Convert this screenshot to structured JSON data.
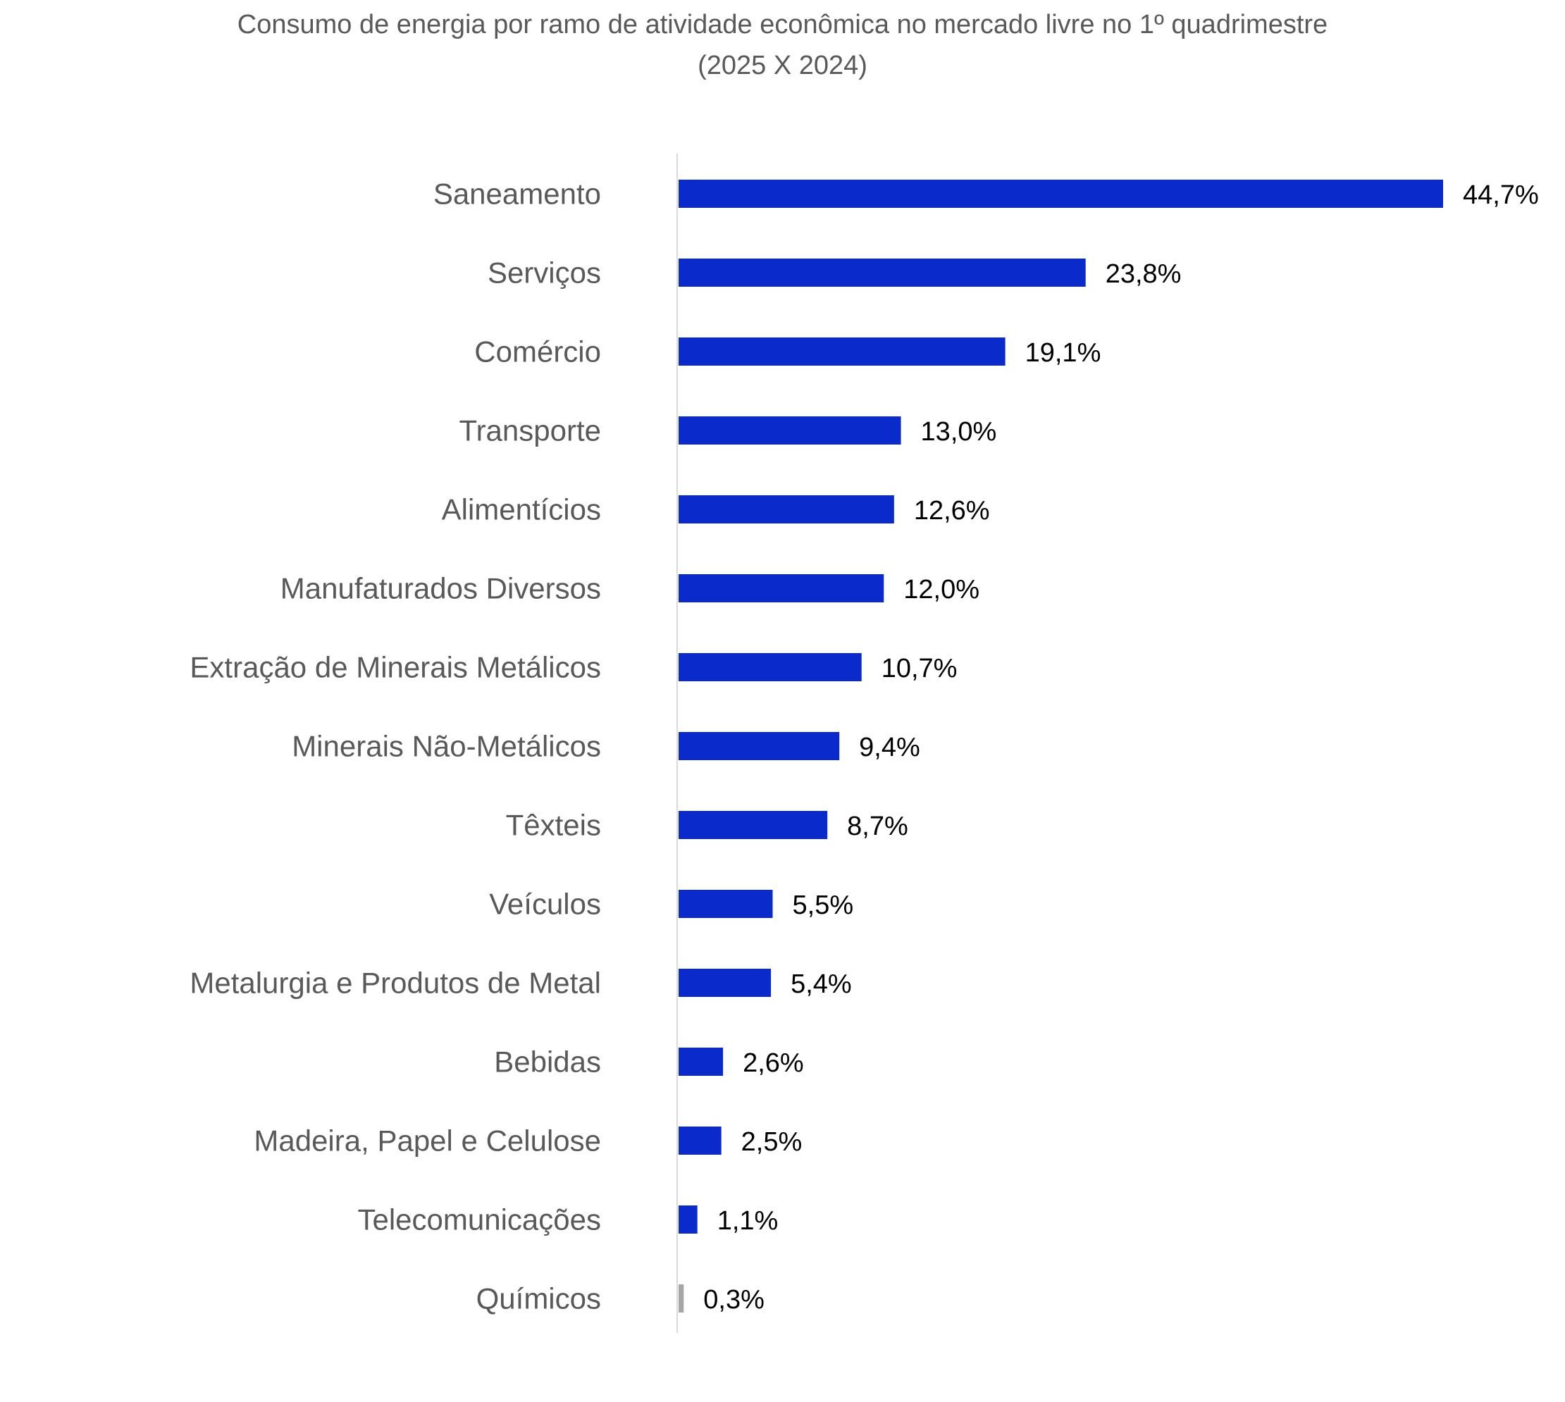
{
  "chart_data": {
    "type": "bar",
    "orientation": "horizontal",
    "title": "Consumo de energia por ramo de atividade econômica no mercado livre no 1º quadrimestre",
    "subtitle": "(2025 X 2024)",
    "categories": [
      "Saneamento",
      "Serviços",
      "Comércio",
      "Transporte",
      "Alimentícios",
      "Manufaturados Diversos",
      "Extração de Minerais Metálicos",
      "Minerais Não-Metálicos",
      "Têxteis",
      "Veículos",
      "Metalurgia e Produtos de Metal",
      "Bebidas",
      "Madeira, Papel e Celulose",
      "Telecomunicações",
      "Químicos"
    ],
    "values": [
      44.7,
      23.8,
      19.1,
      13.0,
      12.6,
      12.0,
      10.7,
      9.4,
      8.7,
      5.5,
      5.4,
      2.6,
      2.5,
      1.1,
      0.3
    ],
    "data_labels": [
      "44,7%",
      "23,8%",
      "19,1%",
      "13,0%",
      "12,6%",
      "12,0%",
      "10,7%",
      "9,4%",
      "8,7%",
      "5,5%",
      "5,4%",
      "2,6%",
      "2,5%",
      "1,1%",
      "0,3%"
    ],
    "bar_colors": [
      "#0a2acb",
      "#0a2acb",
      "#0a2acb",
      "#0a2acb",
      "#0a2acb",
      "#0a2acb",
      "#0a2acb",
      "#0a2acb",
      "#0a2acb",
      "#0a2acb",
      "#0a2acb",
      "#0a2acb",
      "#0a2acb",
      "#0a2acb",
      "#a6a6a6"
    ],
    "xlim": [
      0,
      44.7
    ],
    "xlabel": "",
    "ylabel": "",
    "grid": false,
    "legend": "none",
    "axis_line_color": "#d9d9d9",
    "category_label_color": "#595959",
    "data_label_color": "#000000"
  }
}
